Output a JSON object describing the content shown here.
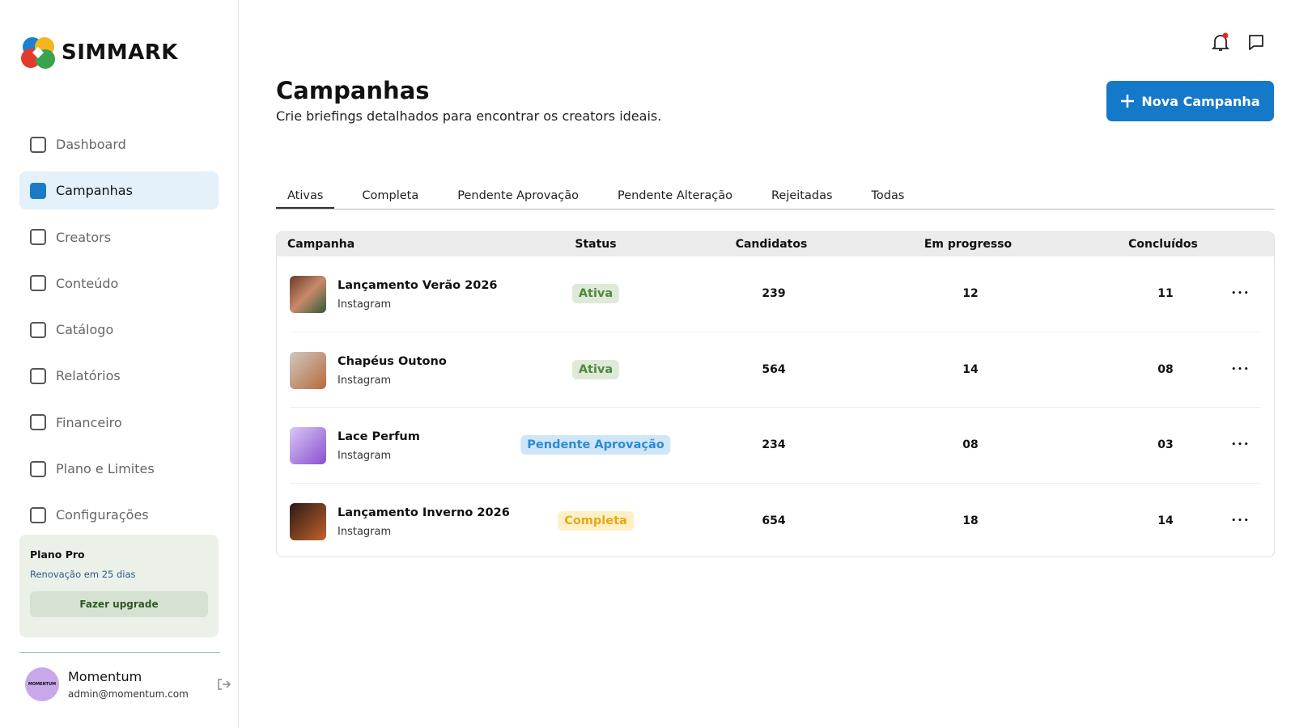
{
  "sidebar": {
    "brand": "SIMMARK",
    "nav": [
      "Dashboard",
      "Campanhas",
      "Creators",
      "Conteúdo",
      "Catálogo",
      "Relatórios",
      "Financeiro",
      "Plano e Limites",
      "Configurações"
    ],
    "active": 1,
    "plan": {
      "title": "Plano Pro",
      "renewal": "Renovação em 25 dias",
      "button": "Fazer upgrade"
    },
    "user": {
      "name": "Momentum",
      "email": "admin@momentum.com",
      "avatar_text": "MOMENTUM"
    }
  },
  "header": {
    "title": "Campanhas",
    "subtitle": "Crie briefings detalhados para encontrar os creators ideais.",
    "button": "Nova Campanha"
  },
  "tabs": {
    "items": [
      "Ativas",
      "Completa",
      "Pendente Aprovação",
      "Pendente Alteração",
      "Rejeitadas",
      "Todas"
    ],
    "active": 0
  },
  "table": {
    "columns": [
      "Campanha",
      "Status",
      "Candidatos",
      "Em progresso",
      "Concluídos"
    ],
    "rows": [
      {
        "name": "Lançamento Verão 2026",
        "platform": "Instagram",
        "status": "Ativa",
        "candidates": "239",
        "in_progress": "12",
        "done": "11"
      },
      {
        "name": "Chapéus Outono",
        "platform": "Instagram",
        "status": "Ativa",
        "candidates": "564",
        "in_progress": "14",
        "done": "08"
      },
      {
        "name": "Lace Perfum",
        "platform": "Instagram",
        "status": "Pendente Aprovação",
        "candidates": "234",
        "in_progress": "08",
        "done": "03"
      },
      {
        "name": "Lançamento Inverno 2026",
        "platform": "Instagram",
        "status": "Completa",
        "candidates": "654",
        "in_progress": "18",
        "done": "14"
      }
    ]
  }
}
